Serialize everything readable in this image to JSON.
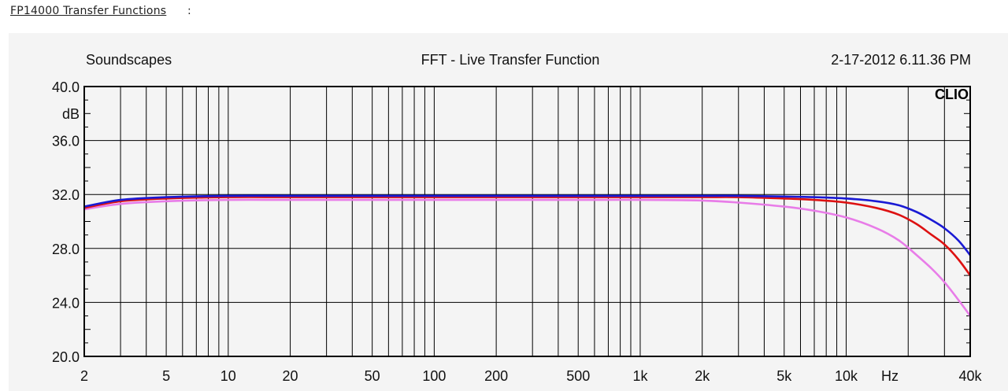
{
  "header": {
    "link_text": "FP14000 Transfer Functions",
    "colon": ":"
  },
  "chart_data": {
    "type": "line",
    "title": "FFT - Live Transfer Function",
    "left_label": "Soundscapes",
    "right_label": "2-17-2012 6.11.36 PM",
    "watermark": "CLIO",
    "y_unit": "dB",
    "x_unit": "Hz",
    "x_scale": "log",
    "xlim": [
      2,
      40000
    ],
    "ylim": [
      20,
      40
    ],
    "grid": true,
    "y_ticks": [
      {
        "value": 40,
        "label": "40.0"
      },
      {
        "value": 36,
        "label": "36.0"
      },
      {
        "value": 32,
        "label": "32.0"
      },
      {
        "value": 28,
        "label": "28.0"
      },
      {
        "value": 24,
        "label": "24.0"
      },
      {
        "value": 20,
        "label": "20.0"
      }
    ],
    "x_ticks": [
      {
        "value": 2,
        "label": "2"
      },
      {
        "value": 5,
        "label": "5"
      },
      {
        "value": 10,
        "label": "10"
      },
      {
        "value": 20,
        "label": "20"
      },
      {
        "value": 50,
        "label": "50"
      },
      {
        "value": 100,
        "label": "100"
      },
      {
        "value": 200,
        "label": "200"
      },
      {
        "value": 500,
        "label": "500"
      },
      {
        "value": 1000,
        "label": "1k"
      },
      {
        "value": 2000,
        "label": "2k"
      },
      {
        "value": 5000,
        "label": "5k"
      },
      {
        "value": 10000,
        "label": "10k"
      },
      {
        "value": 40000,
        "label": "40k"
      }
    ],
    "series": [
      {
        "color": "#e87ce8",
        "x": [
          2,
          3,
          5,
          10,
          20,
          50,
          100,
          200,
          500,
          1000,
          2000,
          3000,
          5000,
          7000,
          10000,
          14000,
          18000,
          22000,
          26000,
          30000,
          35000,
          40000
        ],
        "y": [
          30.9,
          31.3,
          31.5,
          31.6,
          31.6,
          31.6,
          31.6,
          31.6,
          31.6,
          31.6,
          31.55,
          31.4,
          31.1,
          30.8,
          30.3,
          29.5,
          28.6,
          27.5,
          26.5,
          25.5,
          24.2,
          23.0
        ]
      },
      {
        "color": "#dd1111",
        "x": [
          2,
          3,
          5,
          10,
          20,
          50,
          100,
          200,
          500,
          1000,
          2000,
          3000,
          5000,
          7000,
          10000,
          14000,
          18000,
          22000,
          26000,
          30000,
          35000,
          40000
        ],
        "y": [
          31.0,
          31.5,
          31.7,
          31.8,
          31.8,
          31.8,
          31.8,
          31.8,
          31.8,
          31.8,
          31.8,
          31.8,
          31.7,
          31.6,
          31.4,
          31.0,
          30.5,
          29.8,
          29.0,
          28.3,
          27.2,
          26.0
        ]
      },
      {
        "color": "#1a1ad4",
        "x": [
          2,
          3,
          5,
          10,
          20,
          50,
          100,
          200,
          500,
          1000,
          2000,
          3000,
          5000,
          7000,
          10000,
          14000,
          18000,
          22000,
          26000,
          30000,
          35000,
          40000
        ],
        "y": [
          31.1,
          31.6,
          31.8,
          31.9,
          31.9,
          31.9,
          31.9,
          31.9,
          31.9,
          31.9,
          31.9,
          31.9,
          31.85,
          31.8,
          31.7,
          31.5,
          31.2,
          30.7,
          30.1,
          29.5,
          28.6,
          27.5
        ]
      }
    ]
  }
}
